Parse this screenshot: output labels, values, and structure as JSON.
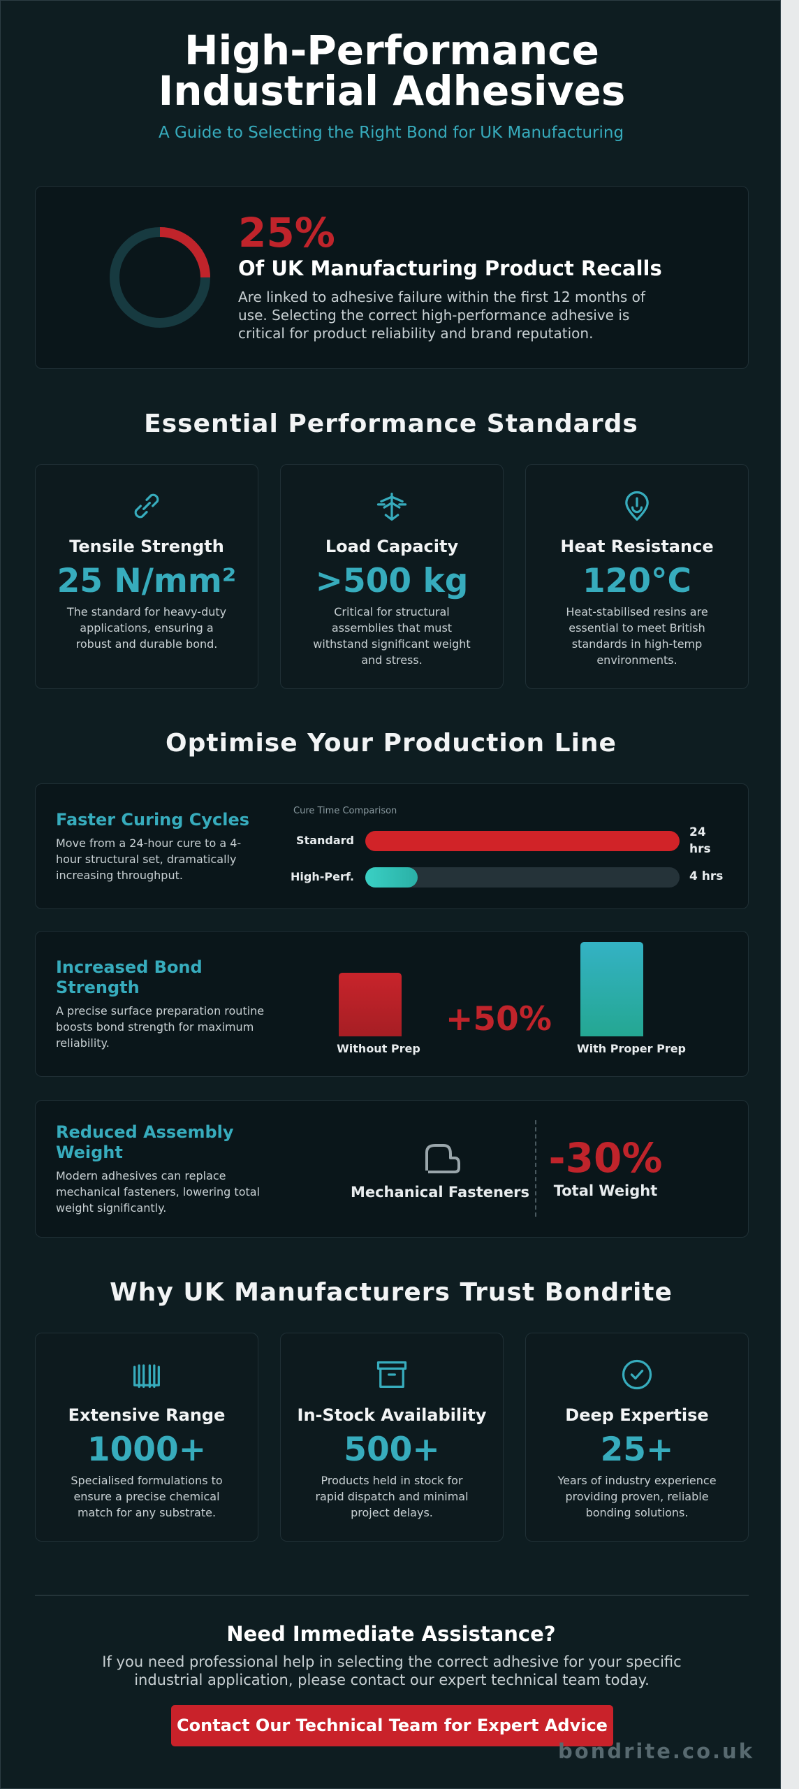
{
  "header": {
    "title": "High-Performance Industrial Adhesives",
    "subtitle": "A Guide to Selecting the Right Bond for UK Manufacturing"
  },
  "stat": {
    "value": "25%",
    "heading": "Of UK Manufacturing Product Recalls",
    "text": "Are linked to adhesive failure within the first 12 months of use. Selecting the correct high-performance adhesive is critical for product reliability and brand reputation."
  },
  "standards": {
    "title": "Essential Performance Standards",
    "cards": [
      {
        "title": "Tensile Strength",
        "value": "25 N/mm²",
        "text": "The standard for heavy-duty applications, ensuring a robust and durable bond."
      },
      {
        "title": "Load Capacity",
        "value": ">500 kg",
        "text": "Critical for structural assemblies that must withstand significant weight and stress."
      },
      {
        "title": "Heat Resistance",
        "value": "120°C",
        "text": "Heat-stabilised resins are essential to meet British standards in high-temp environments."
      }
    ]
  },
  "production": {
    "title": "Optimise Your Production Line",
    "curing": {
      "heading": "Faster Curing Cycles",
      "text": "Move from a 24-hour cure to a 4-hour structural set, dramatically increasing throughput.",
      "chart_title": "Cure Time Comparison",
      "rows": [
        {
          "label": "Standard",
          "value": "24 hrs"
        },
        {
          "label": "High-Perf.",
          "value": "4 hrs"
        }
      ]
    },
    "strength": {
      "heading": "Increased Bond Strength",
      "text": "A precise surface preparation routine boosts bond strength for maximum reliability.",
      "left_label": "Without Prep",
      "change": "+50%",
      "right_label": "With Proper Prep"
    },
    "weight": {
      "heading": "Reduced Assembly Weight",
      "text": "Modern adhesives can replace mechanical fasteners, lowering total weight significantly.",
      "left_label": "Mechanical Fasteners",
      "change": "-30%",
      "right_label": "Total Weight"
    }
  },
  "trust": {
    "title": "Why UK Manufacturers Trust Bondrite",
    "cards": [
      {
        "title": "Extensive Range",
        "value": "1000+",
        "text": "Specialised formulations to ensure a precise chemical match for any substrate."
      },
      {
        "title": "In-Stock Availability",
        "value": "500+",
        "text": "Products held in stock for rapid dispatch and minimal project delays."
      },
      {
        "title": "Deep Expertise",
        "value": "25+",
        "text": "Years of industry experience providing proven, reliable bonding solutions."
      }
    ]
  },
  "cta": {
    "heading": "Need Immediate Assistance?",
    "text": "If you need professional help in selecting the correct adhesive for your specific industrial application, please contact our expert technical team today.",
    "button": "Contact Our Technical Team for Expert Advice"
  },
  "footer": {
    "brand": "bondrite.co.uk"
  }
}
